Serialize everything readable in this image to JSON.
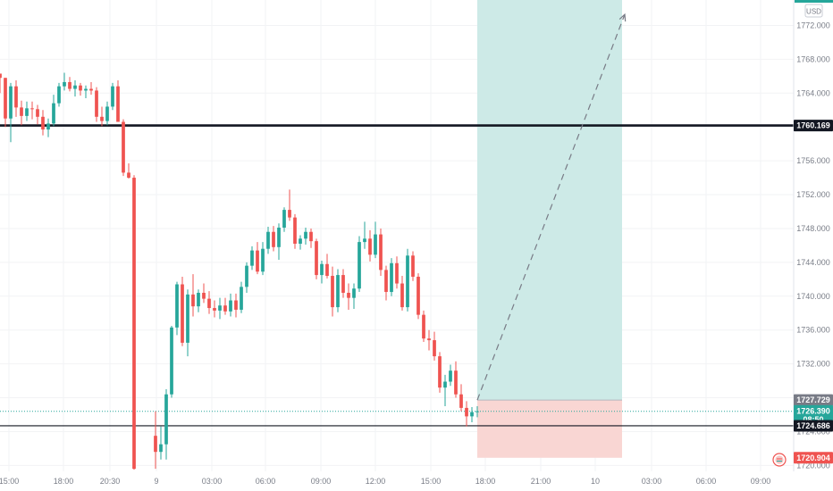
{
  "chart_data": {
    "type": "candlestick",
    "currency": "USD",
    "x_ticks": [
      "15:00",
      "18:00",
      "20:30",
      "9",
      "03:00",
      "06:00",
      "09:00",
      "12:00",
      "15:00",
      "18:00",
      "21:00",
      "10",
      "03:00",
      "06:00",
      "09:00"
    ],
    "y_ticks": [
      "1772.000",
      "1768.000",
      "1764.000",
      "1760.000",
      "1756.000",
      "1752.000",
      "1748.000",
      "1744.000",
      "1740.000",
      "1736.000",
      "1732.000",
      "1728.000",
      "1724.000",
      "1720.000"
    ],
    "ylim": [
      1719.3,
      1775.0
    ],
    "xlim_bars": [
      0,
      148
    ],
    "grid": true,
    "horizontal_levels": [
      {
        "value": 1760.169,
        "label": "1760.169",
        "style": "thick"
      },
      {
        "value": 1724.686,
        "label": "1724.686",
        "style": "thin"
      }
    ],
    "current_price": {
      "value": 1726.39,
      "label": "1726.390",
      "countdown": "08:50"
    },
    "position": {
      "type": "long",
      "entry": 1727.729,
      "entry_label": "1727.729",
      "stop": 1720.904,
      "stop_label": "1720.904",
      "target": 1775.0,
      "start_bar": 89,
      "end_bar": 116
    },
    "projection": {
      "from_bar": 89,
      "from_price": 1727.729,
      "to_bar": 116.5,
      "to_price": 1773.3
    },
    "candles": [
      [
        0,
        1766.3,
        1766.3,
        1764.0,
        1765.8
      ],
      [
        1,
        1765.8,
        1765.8,
        1760.0,
        1761.0
      ],
      [
        2,
        1761.0,
        1765.2,
        1758.2,
        1764.8
      ],
      [
        3,
        1764.8,
        1765.5,
        1761.2,
        1762.3
      ],
      [
        4,
        1762.3,
        1763.1,
        1760.2,
        1761.3
      ],
      [
        5,
        1761.3,
        1763.0,
        1760.7,
        1762.2
      ],
      [
        6,
        1762.2,
        1763.0,
        1760.9,
        1762.1
      ],
      [
        7,
        1762.1,
        1762.6,
        1760.3,
        1761.2
      ],
      [
        8,
        1761.2,
        1762.0,
        1759.0,
        1759.7
      ],
      [
        9,
        1759.7,
        1761.0,
        1758.8,
        1760.4
      ],
      [
        10,
        1760.4,
        1763.8,
        1760.1,
        1762.8
      ],
      [
        11,
        1762.8,
        1765.2,
        1762.4,
        1764.8
      ],
      [
        12,
        1764.8,
        1766.4,
        1764.3,
        1765.3
      ],
      [
        13,
        1765.3,
        1765.9,
        1764.2,
        1764.5
      ],
      [
        14,
        1764.5,
        1765.5,
        1763.6,
        1764.9
      ],
      [
        15,
        1764.9,
        1765.2,
        1763.7,
        1764.3
      ],
      [
        16,
        1764.3,
        1764.9,
        1763.4,
        1764.5
      ],
      [
        17,
        1764.5,
        1765.3,
        1763.8,
        1764.3
      ],
      [
        18,
        1764.3,
        1764.7,
        1760.6,
        1761.2
      ],
      [
        19,
        1761.2,
        1762.4,
        1760.1,
        1760.7
      ],
      [
        20,
        1760.7,
        1763.0,
        1760.2,
        1762.4
      ],
      [
        21,
        1762.4,
        1765.2,
        1762.0,
        1764.8
      ],
      [
        22,
        1764.8,
        1765.5,
        1760.6,
        1760.6
      ],
      [
        23,
        1760.6,
        1760.9,
        1754.2,
        1754.6
      ],
      [
        24,
        1754.6,
        1755.7,
        1753.9,
        1754.0
      ],
      [
        25,
        1754.0,
        1754.3,
        1719.5,
        1719.6
      ],
      [
        29,
        1723.5,
        1726.4,
        1719.6,
        1721.6
      ],
      [
        30,
        1721.6,
        1724.6,
        1720.7,
        1722.5
      ],
      [
        31,
        1722.5,
        1729.0,
        1720.7,
        1728.4
      ],
      [
        32,
        1728.4,
        1736.5,
        1728.0,
        1736.3
      ],
      [
        33,
        1736.3,
        1741.7,
        1735.4,
        1741.4
      ],
      [
        34,
        1741.4,
        1742.3,
        1734.1,
        1734.5
      ],
      [
        35,
        1734.5,
        1740.8,
        1732.9,
        1740.2
      ],
      [
        36,
        1740.2,
        1742.6,
        1737.6,
        1738.8
      ],
      [
        37,
        1738.8,
        1740.8,
        1738.1,
        1740.4
      ],
      [
        38,
        1740.4,
        1741.5,
        1739.2,
        1739.7
      ],
      [
        39,
        1739.7,
        1740.6,
        1737.9,
        1738.6
      ],
      [
        40,
        1738.6,
        1739.5,
        1737.5,
        1738.3
      ],
      [
        41,
        1738.3,
        1739.8,
        1737.3,
        1738.9
      ],
      [
        42,
        1738.9,
        1739.8,
        1737.8,
        1738.2
      ],
      [
        43,
        1738.2,
        1740.3,
        1737.6,
        1739.5
      ],
      [
        44,
        1739.5,
        1740.3,
        1737.5,
        1738.4
      ],
      [
        45,
        1738.4,
        1741.7,
        1738.0,
        1741.1
      ],
      [
        46,
        1741.1,
        1744.0,
        1740.4,
        1743.6
      ],
      [
        47,
        1743.6,
        1745.9,
        1743.1,
        1745.4
      ],
      [
        48,
        1745.4,
        1746.4,
        1742.6,
        1742.9
      ],
      [
        49,
        1742.9,
        1746.4,
        1742.5,
        1745.6
      ],
      [
        50,
        1745.6,
        1748.2,
        1745.0,
        1747.6
      ],
      [
        51,
        1747.6,
        1748.3,
        1745.3,
        1745.8
      ],
      [
        52,
        1745.8,
        1748.6,
        1744.3,
        1748.1
      ],
      [
        53,
        1748.1,
        1750.5,
        1747.6,
        1750.2
      ],
      [
        54,
        1750.2,
        1752.6,
        1748.9,
        1749.3
      ],
      [
        55,
        1749.3,
        1749.7,
        1745.6,
        1746.2
      ],
      [
        56,
        1746.2,
        1747.2,
        1745.5,
        1746.8
      ],
      [
        57,
        1746.8,
        1748.1,
        1746.1,
        1747.6
      ],
      [
        58,
        1747.6,
        1748.0,
        1745.7,
        1746.5
      ],
      [
        59,
        1746.5,
        1746.8,
        1742.0,
        1742.5
      ],
      [
        60,
        1742.5,
        1744.2,
        1741.5,
        1743.8
      ],
      [
        61,
        1743.8,
        1745.0,
        1742.1,
        1742.4
      ],
      [
        62,
        1742.4,
        1743.5,
        1737.6,
        1738.7
      ],
      [
        63,
        1738.7,
        1743.2,
        1738.1,
        1742.5
      ],
      [
        64,
        1742.5,
        1743.2,
        1739.8,
        1740.4
      ],
      [
        65,
        1740.4,
        1741.5,
        1738.4,
        1739.8
      ],
      [
        66,
        1739.8,
        1741.5,
        1738.5,
        1740.9
      ],
      [
        67,
        1740.9,
        1747.1,
        1740.5,
        1746.4
      ],
      [
        68,
        1746.4,
        1748.8,
        1745.6,
        1746.8
      ],
      [
        69,
        1746.8,
        1747.8,
        1744.1,
        1744.9
      ],
      [
        70,
        1744.9,
        1748.8,
        1744.5,
        1747.3
      ],
      [
        71,
        1747.3,
        1748.0,
        1742.4,
        1743.1
      ],
      [
        72,
        1743.1,
        1743.6,
        1739.5,
        1740.5
      ],
      [
        73,
        1740.5,
        1744.5,
        1740.0,
        1743.9
      ],
      [
        74,
        1743.9,
        1744.7,
        1740.9,
        1741.5
      ],
      [
        75,
        1741.5,
        1742.4,
        1738.3,
        1738.7
      ],
      [
        76,
        1738.7,
        1745.6,
        1738.2,
        1744.8
      ],
      [
        77,
        1744.8,
        1745.3,
        1741.8,
        1742.3
      ],
      [
        78,
        1742.3,
        1742.7,
        1737.3,
        1737.8
      ],
      [
        79,
        1737.8,
        1738.3,
        1734.6,
        1735.0
      ],
      [
        80,
        1735.0,
        1736.0,
        1733.6,
        1734.8
      ],
      [
        81,
        1734.8,
        1735.8,
        1732.4,
        1732.9
      ],
      [
        82,
        1732.9,
        1733.4,
        1728.6,
        1729.2
      ],
      [
        83,
        1729.2,
        1730.7,
        1727.0,
        1729.9
      ],
      [
        84,
        1729.9,
        1731.9,
        1729.4,
        1731.2
      ],
      [
        85,
        1731.2,
        1732.3,
        1728.0,
        1728.4
      ],
      [
        86,
        1728.4,
        1729.6,
        1726.4,
        1726.8
      ],
      [
        87,
        1726.8,
        1727.6,
        1724.6,
        1725.8
      ],
      [
        88,
        1725.8,
        1726.9,
        1725.1,
        1726.3
      ],
      [
        89,
        1726.3,
        1727.0,
        1725.7,
        1726.4
      ]
    ]
  },
  "colors": {
    "up": "#26a69a",
    "down": "#ef5350",
    "target_zone": "#cdeae7",
    "stop_zone": "#f9d6d3",
    "entry_tag": "#787b86",
    "current_tag": "#26a69a",
    "stop_tag": "#ef5350",
    "level_tag": "#131722",
    "level_line": "#131722",
    "price_line": "#26a69a"
  },
  "icons": {
    "corner": "flag-icon"
  }
}
